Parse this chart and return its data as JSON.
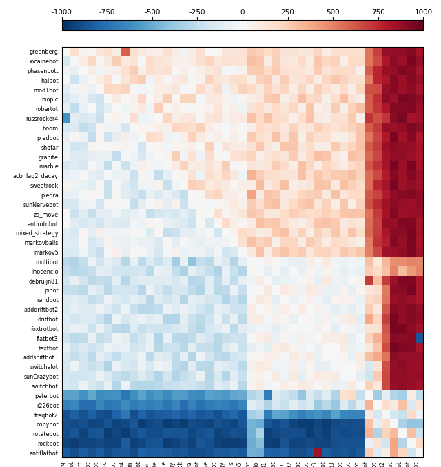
{
  "agents": [
    "greenberg",
    "iocainebot",
    "phasenbott",
    "halbot",
    "mod1bot",
    "biopic",
    "robertot",
    "russrocker4",
    "boom",
    "predbot",
    "shofar",
    "granite",
    "marble",
    "actr_lag2_decay",
    "sweetrock",
    "piedra",
    "sunNervebot",
    "zq_move",
    "antirotnbot",
    "mixed_strategy",
    "markovbails",
    "markov5",
    "multibot",
    "inocencio",
    "debruijn81",
    "pibot",
    "randbot",
    "adddriftbot2",
    "driftbot",
    "foxtrotbot",
    "flatbot3",
    "textbot",
    "addshiftbot3",
    "switchalot",
    "sunCrazybot",
    "switchbot",
    "peterbot",
    "r226bot",
    "freqbot2",
    "copybot",
    "rotatebot",
    "rockbot",
    "antiflatbot"
  ],
  "vmin": -1000,
  "vmax": 1000,
  "colorbar_ticks": [
    -1000,
    -750,
    -500,
    -250,
    0,
    250,
    500,
    750,
    1000
  ]
}
